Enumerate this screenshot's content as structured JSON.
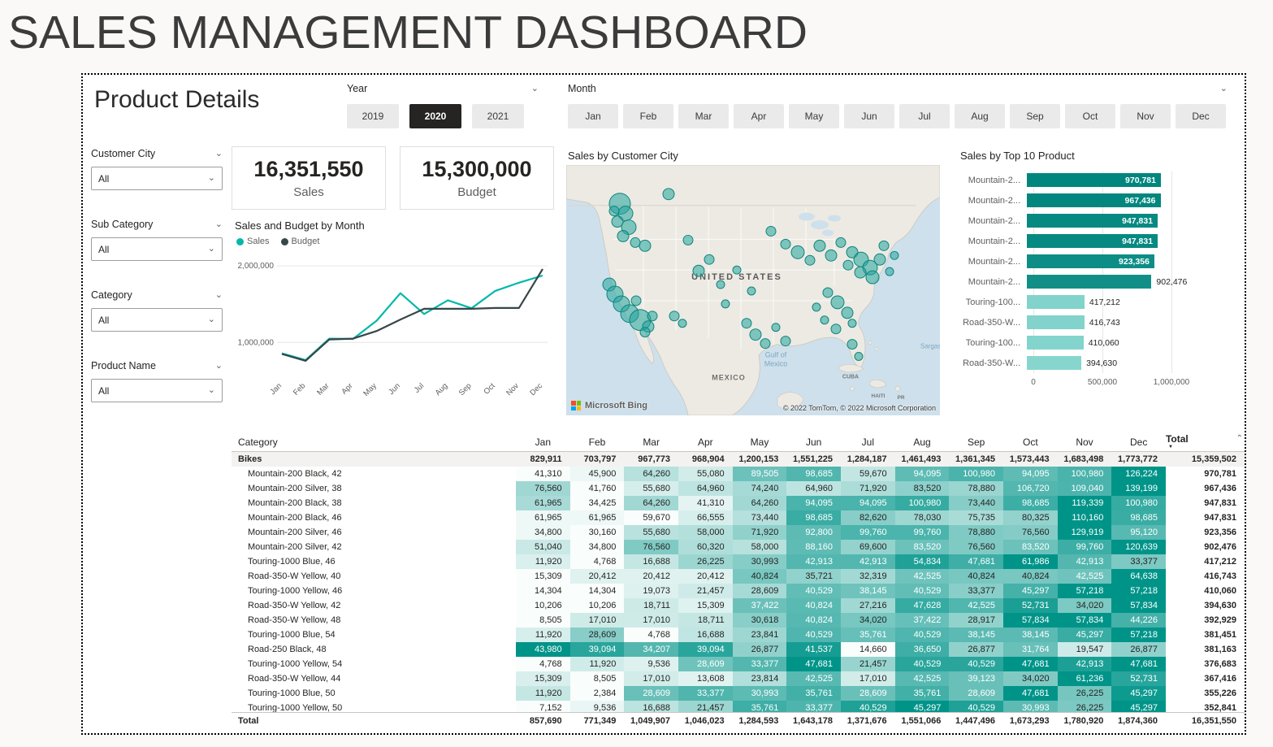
{
  "page": {
    "title": "SALES MANAGEMENT DASHBOARD"
  },
  "report": {
    "title": "Product Details"
  },
  "slicers": {
    "year": {
      "label": "Year",
      "options": [
        "2019",
        "2020",
        "2021"
      ],
      "selected": "2020"
    },
    "month": {
      "label": "Month",
      "options": [
        "Jan",
        "Feb",
        "Mar",
        "Apr",
        "May",
        "Jun",
        "Jul",
        "Aug",
        "Sep",
        "Oct",
        "Nov",
        "Dec"
      ],
      "selected": null
    }
  },
  "filters": [
    {
      "label": "Customer City",
      "value": "All"
    },
    {
      "label": "Sub Category",
      "value": "All"
    },
    {
      "label": "Category",
      "value": "All"
    },
    {
      "label": "Product Name",
      "value": "All"
    }
  ],
  "kpis": [
    {
      "value": "16,351,550",
      "label": "Sales"
    },
    {
      "value": "15,300,000",
      "label": "Budget"
    }
  ],
  "map": {
    "labels": {
      "country": "UNITED STATES",
      "mexico": "MEXICO",
      "cuba": "CUBA",
      "haiti": "HAITI",
      "pr": "PR",
      "gulf_line1": "Gulf of",
      "gulf_line2": "Mexico",
      "sargasso": "Sargass",
      "attribution": "© 2022 TomTom, © 2022 Microsoft Corporation",
      "logo": "Microsoft Bing"
    }
  },
  "colors": {
    "accent": "#01B8AA",
    "budget_line": "#374649",
    "selected_button": "#252423",
    "heat_dark": "#009488",
    "bar_dark": "#01867E",
    "bar_light": "#86D6CE"
  },
  "chart_data": [
    {
      "id": "sales_budget_by_month",
      "type": "line",
      "title": "Sales and Budget by Month",
      "categories": [
        "Jan",
        "Feb",
        "Mar",
        "Apr",
        "May",
        "Jun",
        "Jul",
        "Aug",
        "Sep",
        "Oct",
        "Nov",
        "Dec"
      ],
      "series": [
        {
          "name": "Sales",
          "color": "#01B8AA",
          "values": [
            857690,
            771349,
            1049907,
            1046023,
            1284593,
            1643178,
            1371676,
            1551066,
            1447496,
            1673293,
            1780920,
            1874360
          ]
        },
        {
          "name": "Budget",
          "color": "#374649",
          "values": [
            850000,
            760000,
            1040000,
            1050000,
            1150000,
            1300000,
            1440000,
            1440000,
            1440000,
            1450000,
            1450000,
            1960000
          ]
        }
      ],
      "y_ticks": [
        1000000,
        2000000
      ],
      "y_tick_labels": [
        "1,000,000",
        "2,000,000"
      ],
      "ylim": [
        600000,
        2150000
      ],
      "grid": true,
      "legend_position": "top"
    },
    {
      "id": "sales_by_top10_product",
      "type": "bar",
      "orientation": "horizontal",
      "title": "Sales by Top 10 Product",
      "categories": [
        "Mountain-2...",
        "Mountain-2...",
        "Mountain-2...",
        "Mountain-2...",
        "Mountain-2...",
        "Mountain-2...",
        "Touring-100...",
        "Road-350-W...",
        "Touring-100...",
        "Road-350-W..."
      ],
      "values": [
        970781,
        967436,
        947831,
        947831,
        923356,
        902476,
        417212,
        416743,
        410060,
        394630
      ],
      "value_labels": [
        "970,781",
        "967,436",
        "947,831",
        "947,831",
        "923,356",
        "902,476",
        "417,212",
        "416,743",
        "410,060",
        "394,630"
      ],
      "x_ticks": [
        0,
        500000,
        1000000
      ],
      "x_tick_labels": [
        "0",
        "500,000",
        "1,000,000"
      ],
      "xlim": [
        0,
        1050000
      ]
    },
    {
      "id": "sales_by_customer_city",
      "type": "scatter",
      "title": "Sales by Customer City",
      "bubbles": [
        [
          66,
          48,
          13
        ],
        [
          73,
          60,
          9
        ],
        [
          63,
          70,
          7
        ],
        [
          77,
          77,
          9
        ],
        [
          70,
          88,
          7
        ],
        [
          85,
          96,
          6
        ],
        [
          97,
          100,
          7
        ],
        [
          59,
          57,
          6
        ],
        [
          126,
          36,
          7
        ],
        [
          150,
          93,
          6
        ],
        [
          176,
          117,
          6
        ],
        [
          163,
          131,
          7
        ],
        [
          190,
          148,
          5
        ],
        [
          53,
          148,
          8
        ],
        [
          60,
          160,
          10
        ],
        [
          68,
          172,
          10
        ],
        [
          78,
          184,
          11
        ],
        [
          91,
          192,
          13
        ],
        [
          101,
          200,
          7
        ],
        [
          86,
          168,
          6
        ],
        [
          106,
          187,
          6
        ],
        [
          97,
          207,
          6
        ],
        [
          133,
          187,
          6
        ],
        [
          143,
          196,
          5
        ],
        [
          210,
          130,
          5
        ],
        [
          228,
          156,
          5
        ],
        [
          196,
          172,
          5
        ],
        [
          222,
          196,
          6
        ],
        [
          233,
          210,
          7
        ],
        [
          245,
          221,
          6
        ],
        [
          258,
          201,
          5
        ],
        [
          270,
          218,
          6
        ],
        [
          252,
          82,
          6
        ],
        [
          270,
          98,
          6
        ],
        [
          285,
          108,
          8
        ],
        [
          300,
          118,
          6
        ],
        [
          312,
          100,
          7
        ],
        [
          326,
          112,
          7
        ],
        [
          338,
          96,
          6
        ],
        [
          352,
          108,
          7
        ],
        [
          363,
          117,
          9
        ],
        [
          374,
          127,
          9
        ],
        [
          386,
          117,
          7
        ],
        [
          377,
          139,
          8
        ],
        [
          362,
          133,
          7
        ],
        [
          391,
          100,
          6
        ],
        [
          398,
          132,
          5
        ],
        [
          347,
          124,
          6
        ],
        [
          404,
          112,
          5
        ],
        [
          322,
          158,
          6
        ],
        [
          334,
          170,
          8
        ],
        [
          346,
          183,
          7
        ],
        [
          318,
          192,
          5
        ],
        [
          332,
          203,
          6
        ],
        [
          308,
          176,
          5
        ],
        [
          352,
          196,
          5
        ],
        [
          352,
          222,
          6
        ],
        [
          360,
          237,
          5
        ]
      ]
    },
    {
      "id": "category_monthly_sales",
      "type": "table",
      "columns": [
        "Category",
        "Jan",
        "Feb",
        "Mar",
        "Apr",
        "May",
        "Jun",
        "Jul",
        "Aug",
        "Sep",
        "Oct",
        "Nov",
        "Dec",
        "Total"
      ],
      "rows": [
        {
          "name": "Bikes",
          "kind": "group",
          "values": [
            829911,
            703797,
            967773,
            968904,
            1200153,
            1551225,
            1284187,
            1461493,
            1361345,
            1573443,
            1683498,
            1773772
          ],
          "total": 15359502
        },
        {
          "name": "Mountain-200 Black, 42",
          "kind": "detail",
          "values": [
            41310,
            45900,
            64260,
            55080,
            89505,
            98685,
            59670,
            94095,
            100980,
            94095,
            100980,
            126224
          ],
          "total": 970781
        },
        {
          "name": "Mountain-200 Silver, 38",
          "kind": "detail",
          "values": [
            76560,
            41760,
            55680,
            64960,
            74240,
            64960,
            71920,
            83520,
            78880,
            106720,
            109040,
            139199
          ],
          "total": 967436
        },
        {
          "name": "Mountain-200 Black, 38",
          "kind": "detail",
          "values": [
            61965,
            34425,
            64260,
            41310,
            64260,
            94095,
            94095,
            100980,
            73440,
            98685,
            119339,
            100980
          ],
          "total": 947831
        },
        {
          "name": "Mountain-200 Black, 46",
          "kind": "detail",
          "values": [
            61965,
            61965,
            59670,
            66555,
            73440,
            98685,
            82620,
            78030,
            75735,
            80325,
            110160,
            98685
          ],
          "total": 947831
        },
        {
          "name": "Mountain-200 Silver, 46",
          "kind": "detail",
          "values": [
            34800,
            30160,
            55680,
            58000,
            71920,
            92800,
            99760,
            99760,
            78880,
            76560,
            129919,
            95120
          ],
          "total": 923356
        },
        {
          "name": "Mountain-200 Silver, 42",
          "kind": "detail",
          "values": [
            51040,
            34800,
            76560,
            60320,
            58000,
            88160,
            69600,
            83520,
            76560,
            83520,
            99760,
            120639
          ],
          "total": 902476
        },
        {
          "name": "Touring-1000 Blue, 46",
          "kind": "detail",
          "values": [
            11920,
            4768,
            16688,
            26225,
            30993,
            42913,
            42913,
            54834,
            47681,
            61986,
            42913,
            33377
          ],
          "total": 417212
        },
        {
          "name": "Road-350-W Yellow, 40",
          "kind": "detail",
          "values": [
            15309,
            20412,
            20412,
            20412,
            40824,
            35721,
            32319,
            42525,
            40824,
            40824,
            42525,
            64638
          ],
          "total": 416743
        },
        {
          "name": "Touring-1000 Yellow, 46",
          "kind": "detail",
          "values": [
            14304,
            14304,
            19073,
            21457,
            28609,
            40529,
            38145,
            40529,
            33377,
            45297,
            57218,
            57218
          ],
          "total": 410060
        },
        {
          "name": "Road-350-W Yellow, 42",
          "kind": "detail",
          "values": [
            10206,
            10206,
            18711,
            15309,
            37422,
            40824,
            27216,
            47628,
            42525,
            52731,
            34020,
            57834
          ],
          "total": 394630
        },
        {
          "name": "Road-350-W Yellow, 48",
          "kind": "detail",
          "values": [
            8505,
            17010,
            17010,
            18711,
            30618,
            40824,
            34020,
            37422,
            28917,
            57834,
            57834,
            44226
          ],
          "total": 392929
        },
        {
          "name": "Touring-1000 Blue, 54",
          "kind": "detail",
          "values": [
            11920,
            28609,
            4768,
            16688,
            23841,
            40529,
            35761,
            40529,
            38145,
            38145,
            45297,
            57218
          ],
          "total": 381451
        },
        {
          "name": "Road-250 Black, 48",
          "kind": "detail",
          "values": [
            43980,
            39094,
            34207,
            39094,
            26877,
            41537,
            14660,
            36650,
            26877,
            31764,
            19547,
            26877
          ],
          "total": 381163
        },
        {
          "name": "Touring-1000 Yellow, 54",
          "kind": "detail",
          "values": [
            4768,
            11920,
            9536,
            28609,
            33377,
            47681,
            21457,
            40529,
            40529,
            47681,
            42913,
            47681
          ],
          "total": 376683
        },
        {
          "name": "Road-350-W Yellow, 44",
          "kind": "detail",
          "values": [
            15309,
            8505,
            17010,
            13608,
            23814,
            42525,
            17010,
            42525,
            39123,
            34020,
            61236,
            52731
          ],
          "total": 367416
        },
        {
          "name": "Touring-1000 Blue, 50",
          "kind": "detail",
          "values": [
            11920,
            2384,
            28609,
            33377,
            30993,
            35761,
            28609,
            35761,
            28609,
            47681,
            26225,
            45297
          ],
          "total": 355226
        },
        {
          "name": "Touring-1000 Yellow, 50",
          "kind": "detail",
          "values": [
            7152,
            9536,
            16688,
            21457,
            35761,
            33377,
            40529,
            45297,
            40529,
            30993,
            26225,
            45297
          ],
          "total": 352841
        }
      ],
      "grand_total": {
        "name": "Total",
        "values": [
          857690,
          771349,
          1049907,
          1046023,
          1284593,
          1643178,
          1371676,
          1551066,
          1447496,
          1673293,
          1780920,
          1874360
        ],
        "total": 16351550
      }
    }
  ]
}
